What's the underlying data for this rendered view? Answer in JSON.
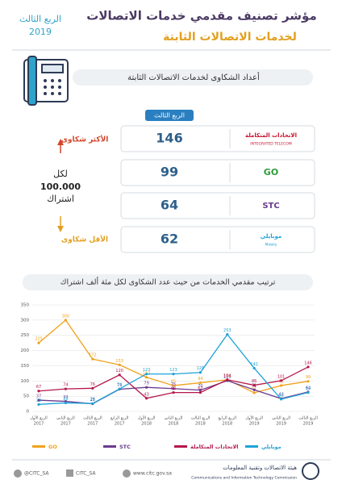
{
  "header": {
    "title": "مؤشر تصنيف مقدمي خدمات الاتصالات",
    "subtitle": "لخدمات الاتصالات الثابتة",
    "period": "الربع الثالث",
    "year": "2019"
  },
  "ranking": {
    "banner": "أعداد الشكاوى لخدمات الاتصالات الثابتة",
    "period_tag": "الربع الثالث",
    "most": "الأكثر شكاوى",
    "per_label": [
      "لكل",
      "100.000",
      "اشتراك"
    ],
    "least": "الأقل شكاوى",
    "rows": [
      {
        "provider": "الاتحادات المتكاملة",
        "provider_en": "INTEGRATED TELECOM",
        "value": 146
      },
      {
        "provider": "GO",
        "value": 99
      },
      {
        "provider": "STC",
        "value": 64
      },
      {
        "provider": "موبايلي",
        "provider_en": "Mobily",
        "value": 62
      }
    ]
  },
  "chart_data": {
    "type": "line",
    "title": "ترتيب مقدمي الخدمات من حيث عدد الشكاوى لكل مئة ألف اشتراك",
    "categories": [
      [
        "الربع الأول",
        "2017"
      ],
      [
        "الربع الثاني",
        "2017"
      ],
      [
        "الربع الثالث",
        "2017"
      ],
      [
        "الربع الرابع",
        "2017"
      ],
      [
        "الربع الأول",
        "2018"
      ],
      [
        "الربع الثاني",
        "2018"
      ],
      [
        "الربع الثالث",
        "2018"
      ],
      [
        "الربع الرابع",
        "2018"
      ],
      [
        "الربع الأول",
        "2019"
      ],
      [
        "الربع الثاني",
        "2019"
      ],
      [
        "الربع الثالث",
        "2019"
      ]
    ],
    "series": [
      {
        "name": "GO",
        "color": "#f0a21c",
        "values": [
          225,
          300,
          172,
          153,
          112,
          85,
          94,
          104,
          61,
          85,
          99
        ]
      },
      {
        "name": "STC",
        "color": "#6a3b8f",
        "values": [
          37,
          33,
          25,
          73,
          79,
          75,
          70,
          101,
          71,
          42,
          64
        ]
      },
      {
        "name": "الاتحادات المتكاملة",
        "color": "#b5174b",
        "values": [
          67,
          74,
          76,
          120,
          43,
          62,
          62,
          104,
          86,
          101,
          146
        ]
      },
      {
        "name": "موبايلي",
        "color": "#1fa3d9",
        "values": [
          23,
          28,
          26,
          74,
          123,
          123,
          128,
          253,
          142,
          40,
          62
        ]
      }
    ],
    "ylim": [
      0,
      350
    ],
    "yticks": [
      0,
      50,
      100,
      150,
      200,
      250,
      300,
      350
    ],
    "grid": true
  },
  "footer": {
    "twitter": "@CITC_SA",
    "facebook": "CITC_SA",
    "website": "www.citc.gov.sa",
    "org_ar": "هيئة الاتصالات وتقنية المعلومات",
    "org_en": "Communications and Information Technology Commission"
  }
}
